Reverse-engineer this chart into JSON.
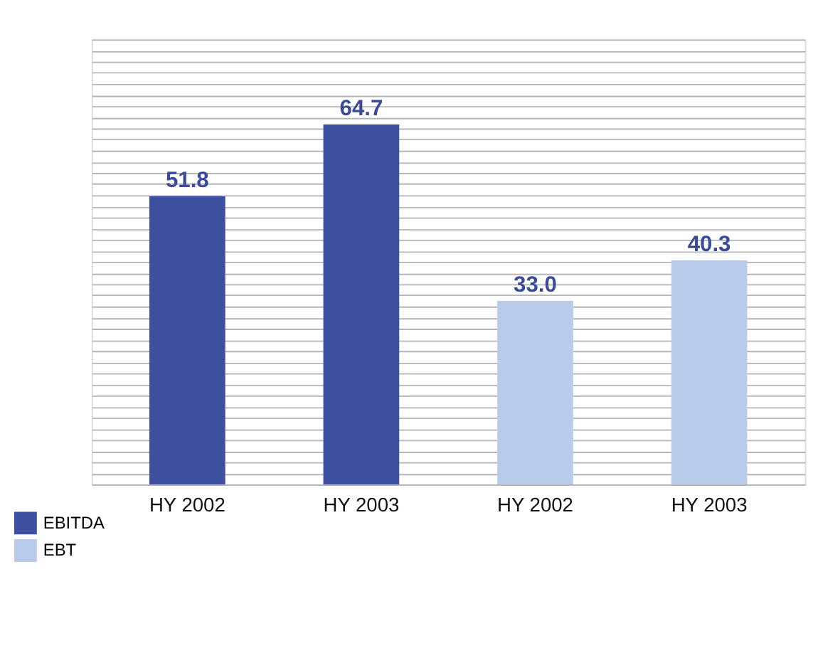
{
  "chart_data": {
    "type": "bar",
    "categories": [
      "HY 2002",
      "HY 2003",
      "HY 2002",
      "HY 2003"
    ],
    "series": [
      {
        "name": "EBITDA",
        "color": "#3d4f9f",
        "values": [
          51.8,
          64.7,
          null,
          null
        ],
        "value_labels": [
          "51.8",
          "64.7",
          null,
          null
        ]
      },
      {
        "name": "EBT",
        "color": "#b9cbea",
        "values": [
          null,
          null,
          33.0,
          40.3
        ],
        "value_labels": [
          null,
          null,
          "33.0",
          "40.3"
        ]
      }
    ],
    "ylim": [
      0,
      80
    ],
    "grid": "y",
    "tick_labels": "x",
    "legend": "bottom left"
  }
}
